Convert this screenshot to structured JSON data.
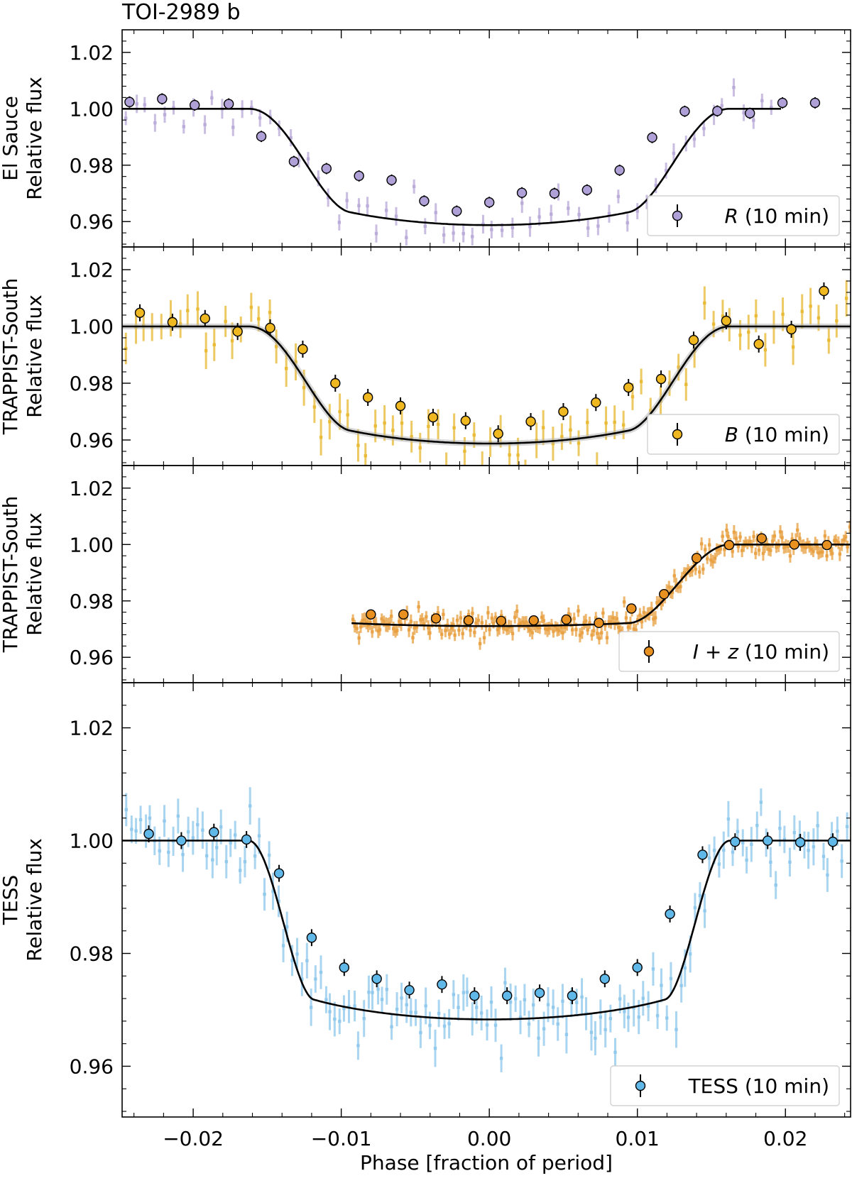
{
  "figure": {
    "title": "TOI-2989 b",
    "xlabel": "Phase [fraction of period]"
  },
  "chart_data": [
    {
      "type": "scatter",
      "ylabel_line1": "El Sauce",
      "ylabel_line2": "Relative flux",
      "legend_label": "R (10 min)",
      "legend_italic": "R",
      "legend_rest": " (10 min)",
      "color": "#b8a8d8",
      "marker_color": "#b0a0d8",
      "model": {
        "t0": 0.0,
        "t14": 0.0325,
        "depth": 0.033,
        "limb": 0.6,
        "ingress_frac": 0.42
      },
      "binned": {
        "x": [
          -0.0243,
          -0.0221,
          -0.0199,
          -0.0176,
          -0.0154,
          -0.0132,
          -0.011,
          -0.0088,
          -0.0066,
          -0.0044,
          -0.0022,
          0.0,
          0.0022,
          0.0044,
          0.0066,
          0.0088,
          0.011,
          0.0132,
          0.0154,
          0.0176,
          0.0198,
          0.022
        ],
        "y": [
          1.0024,
          1.0035,
          1.0013,
          1.0017,
          0.9902,
          0.9813,
          0.9788,
          0.9762,
          0.9747,
          0.9673,
          0.9637,
          0.9668,
          0.9702,
          0.97,
          0.9712,
          0.9782,
          0.9898,
          0.9991,
          0.9992,
          0.9984,
          1.0021,
          1.0021
        ],
        "err": [
          0.002,
          0.002,
          0.002,
          0.002,
          0.002,
          0.002,
          0.002,
          0.002,
          0.002,
          0.002,
          0.002,
          0.002,
          0.002,
          0.002,
          0.002,
          0.002,
          0.002,
          0.002,
          0.002,
          0.002,
          0.002,
          0.002
        ]
      },
      "raw": {
        "xmin": -0.0245,
        "xmax": 0.0195,
        "step": 0.00065,
        "scatter": 0.0035,
        "err": 0.003,
        "seed": 11
      },
      "xlim": [
        -0.0248,
        0.0244
      ],
      "ylim": [
        0.951,
        1.028
      ],
      "yticks": [
        0.96,
        0.98,
        1.0,
        1.02
      ],
      "ytick_labels": [
        "0.96",
        "0.98",
        "1.00",
        "1.02"
      ]
    },
    {
      "type": "scatter",
      "ylabel_line1": "TRAPPIST-South",
      "ylabel_line2": "Relative flux",
      "legend_label": "B (10 min)",
      "legend_italic": "B",
      "legend_rest": " (10 min)",
      "color": "#e8b830",
      "marker_color": "#f0b820",
      "model": {
        "t0": 0.0,
        "t14": 0.0325,
        "depth": 0.033,
        "limb": 0.6,
        "ingress_frac": 0.42
      },
      "binned": {
        "x": [
          -0.0236,
          -0.0214,
          -0.0192,
          -0.017,
          -0.0148,
          -0.0126,
          -0.0104,
          -0.0082,
          -0.006,
          -0.0038,
          -0.0016,
          0.0006,
          0.0028,
          0.005,
          0.0072,
          0.0094,
          0.0116,
          0.0138,
          0.016,
          0.0182,
          0.0204,
          0.0226
        ],
        "y": [
          1.0048,
          1.0015,
          1.0028,
          0.9982,
          0.9995,
          0.992,
          0.98,
          0.975,
          0.972,
          0.968,
          0.9668,
          0.9622,
          0.9665,
          0.97,
          0.9732,
          0.9785,
          0.9815,
          0.9952,
          1.002,
          0.9938,
          0.999,
          1.0125
        ],
        "err": [
          0.003,
          0.003,
          0.003,
          0.003,
          0.003,
          0.003,
          0.003,
          0.003,
          0.003,
          0.003,
          0.003,
          0.003,
          0.003,
          0.003,
          0.003,
          0.003,
          0.003,
          0.003,
          0.003,
          0.003,
          0.003,
          0.003
        ]
      },
      "raw": {
        "xmin": -0.0245,
        "xmax": 0.0244,
        "step": 0.0006,
        "scatter": 0.006,
        "err": 0.0055,
        "seed": 23
      },
      "xlim": [
        -0.0248,
        0.0244
      ],
      "ylim": [
        0.951,
        1.028
      ],
      "yticks": [
        0.96,
        0.98,
        1.0,
        1.02
      ],
      "ytick_labels": [
        "0.96",
        "0.98",
        "1.00",
        "1.02"
      ]
    },
    {
      "type": "scatter",
      "ylabel_line1": "TRAPPIST-South",
      "ylabel_line2": "Relative flux",
      "legend_label": "I + z (10 min)",
      "legend_italic": "I + z",
      "legend_rest": " (10 min)",
      "color": "#e8a040",
      "marker_color": "#e89020",
      "model": {
        "t0": 0.0,
        "t14": 0.0325,
        "depth": 0.027,
        "limb": 0.2,
        "ingress_frac": 0.42
      },
      "binned": {
        "x": [
          -0.008,
          -0.0058,
          -0.0036,
          -0.0014,
          0.0008,
          0.003,
          0.0052,
          0.0074,
          0.0096,
          0.0118,
          0.014,
          0.0162,
          0.0184,
          0.0206,
          0.0228
        ],
        "y": [
          0.9752,
          0.9752,
          0.9738,
          0.9731,
          0.9729,
          0.9731,
          0.9734,
          0.9722,
          0.9773,
          0.9824,
          0.9952,
          0.9998,
          1.0022,
          1.0,
          0.9998
        ],
        "err": [
          0.0015,
          0.0015,
          0.0015,
          0.0015,
          0.0015,
          0.0015,
          0.0015,
          0.0015,
          0.0015,
          0.0015,
          0.0015,
          0.0015,
          0.0015,
          0.0015,
          0.0015
        ]
      },
      "raw": {
        "xmin": -0.0092,
        "xmax": 0.0244,
        "step": 0.00013,
        "scatter": 0.0025,
        "err": 0.0022,
        "seed": 37
      },
      "xlim": [
        -0.0248,
        0.0244
      ],
      "ylim": [
        0.951,
        1.028
      ],
      "yticks": [
        0.96,
        0.98,
        1.0,
        1.02
      ],
      "ytick_labels": [
        "0.96",
        "0.98",
        "1.00",
        "1.02"
      ]
    },
    {
      "type": "scatter",
      "ylabel_line1": "TESS",
      "ylabel_line2": "Relative flux",
      "legend_label": "TESS (10 min)",
      "legend_italic": "",
      "legend_rest": "TESS (10 min)",
      "color": "#8ec8ec",
      "marker_color": "#60b8e8",
      "model": {
        "t0": 0.0,
        "t14": 0.0325,
        "depth": 0.028,
        "limb": 0.35,
        "ingress_frac": 0.27
      },
      "binned": {
        "x": [
          -0.023,
          -0.0208,
          -0.0186,
          -0.0164,
          -0.0142,
          -0.012,
          -0.0098,
          -0.0076,
          -0.0054,
          -0.0032,
          -0.001,
          0.0012,
          0.0034,
          0.0056,
          0.0078,
          0.01,
          0.0122,
          0.0144,
          0.0166,
          0.0188,
          0.021,
          0.0232
        ],
        "y": [
          1.0012,
          1.0,
          1.0015,
          1.0002,
          0.9942,
          0.9828,
          0.9775,
          0.9755,
          0.9735,
          0.9745,
          0.9725,
          0.9725,
          0.973,
          0.9725,
          0.9755,
          0.9775,
          0.987,
          0.9975,
          0.9998,
          1.0,
          0.9997,
          0.9998
        ],
        "err": [
          0.0015,
          0.0015,
          0.0015,
          0.0015,
          0.0015,
          0.0015,
          0.0015,
          0.0015,
          0.0015,
          0.0015,
          0.0015,
          0.0015,
          0.0015,
          0.0015,
          0.0015,
          0.0015,
          0.0015,
          0.0015,
          0.0015,
          0.0015,
          0.0015,
          0.0015
        ]
      },
      "raw": {
        "xmin": -0.0245,
        "xmax": 0.0244,
        "step": 0.00032,
        "scatter": 0.0032,
        "err": 0.0028,
        "seed": 53
      },
      "xlim": [
        -0.0248,
        0.0244
      ],
      "ylim": [
        0.951,
        1.028
      ],
      "yticks": [
        0.96,
        0.98,
        1.0,
        1.02
      ],
      "ytick_labels": [
        "0.96",
        "0.98",
        "1.00",
        "1.02"
      ],
      "xticks": [
        -0.02,
        -0.01,
        0.0,
        0.01,
        0.02
      ],
      "xtick_labels": [
        "−0.02",
        "−0.01",
        "0.00",
        "0.01",
        "0.02"
      ]
    }
  ]
}
